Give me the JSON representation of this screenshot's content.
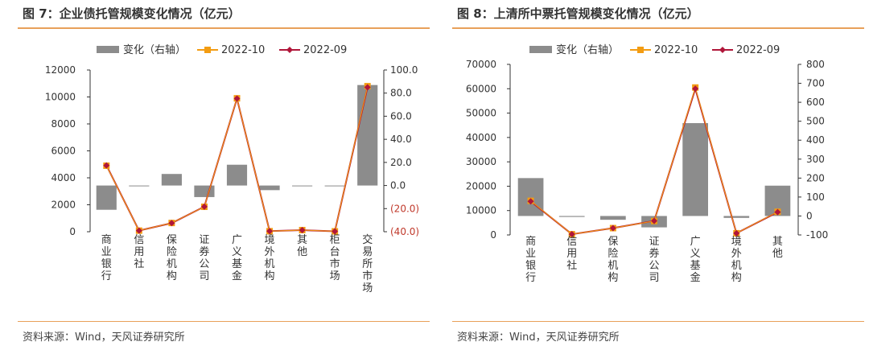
{
  "charts": [
    {
      "title": "图 7：企业债托管规模变化情况（亿元）",
      "source": "资料来源：Wind，天风证券研究所",
      "legend": [
        "变化（右轴）",
        "2022-10",
        "2022-09"
      ],
      "left_ticks": [
        "0",
        "2000",
        "4000",
        "6000",
        "8000",
        "10000",
        "12000"
      ],
      "right_ticks": [
        "(40.0)",
        "(20.0)",
        "0.0",
        "20.0",
        "40.0",
        "60.0",
        "80.0",
        "100.0"
      ],
      "colors": {
        "bar": "#8c8c8c",
        "line_2022_10": "#f39c12",
        "line_2022_09": "#b0163a"
      }
    },
    {
      "title": "图 8：上清所中票托管规模变化情况（亿元）",
      "source": "资料来源：Wind，天风证券研究所",
      "legend": [
        "变化（右轴）",
        "2022-10",
        "2022-09"
      ],
      "left_ticks": [
        "0",
        "10000",
        "20000",
        "30000",
        "40000",
        "50000",
        "60000",
        "70000"
      ],
      "right_ticks": [
        "-100",
        "0",
        "100",
        "200",
        "300",
        "400",
        "500",
        "600",
        "700",
        "800"
      ],
      "colors": {
        "bar": "#8c8c8c",
        "line_2022_10": "#f39c12",
        "line_2022_09": "#b0163a"
      }
    }
  ],
  "chart_data": [
    {
      "type": "bar",
      "title": "企业债托管规模变化情况（亿元）",
      "categories": [
        "商业银行",
        "信用社",
        "保险机构",
        "证券公司",
        "广义基金",
        "境外机构",
        "其他",
        "柜台市场",
        "交易所市场"
      ],
      "series": [
        {
          "name": "变化（右轴）",
          "axis": "right",
          "values": [
            -21.0,
            -0.5,
            10.0,
            -10.0,
            18.0,
            -4.0,
            -0.3,
            0.0,
            87.0
          ]
        },
        {
          "name": "2022-10",
          "axis": "left",
          "values": [
            4900,
            80,
            650,
            1850,
            9900,
            40,
            120,
            30,
            10800
          ]
        },
        {
          "name": "2022-09",
          "axis": "left",
          "values": [
            4920,
            80,
            640,
            1860,
            9880,
            45,
            120,
            30,
            10720
          ]
        }
      ],
      "ylim_left": [
        0,
        12000
      ],
      "ylim_right": [
        -40,
        100
      ]
    },
    {
      "type": "bar",
      "title": "上清所中票托管规模变化情况（亿元）",
      "categories": [
        "商业银行",
        "信用社",
        "保险机构",
        "证券公司",
        "广义基金",
        "境外机构",
        "其他"
      ],
      "series": [
        {
          "name": "变化（右轴）",
          "axis": "right",
          "values": [
            200,
            -5,
            -20,
            -60,
            490,
            -10,
            160
          ]
        },
        {
          "name": "2022-10",
          "axis": "left",
          "values": [
            14000,
            300,
            2800,
            5700,
            60500,
            700,
            9500
          ]
        },
        {
          "name": "2022-09",
          "axis": "left",
          "values": [
            13800,
            310,
            2820,
            5760,
            60000,
            710,
            9350
          ]
        }
      ],
      "ylim_left": [
        0,
        70000
      ],
      "ylim_right": [
        -100,
        800
      ]
    }
  ]
}
